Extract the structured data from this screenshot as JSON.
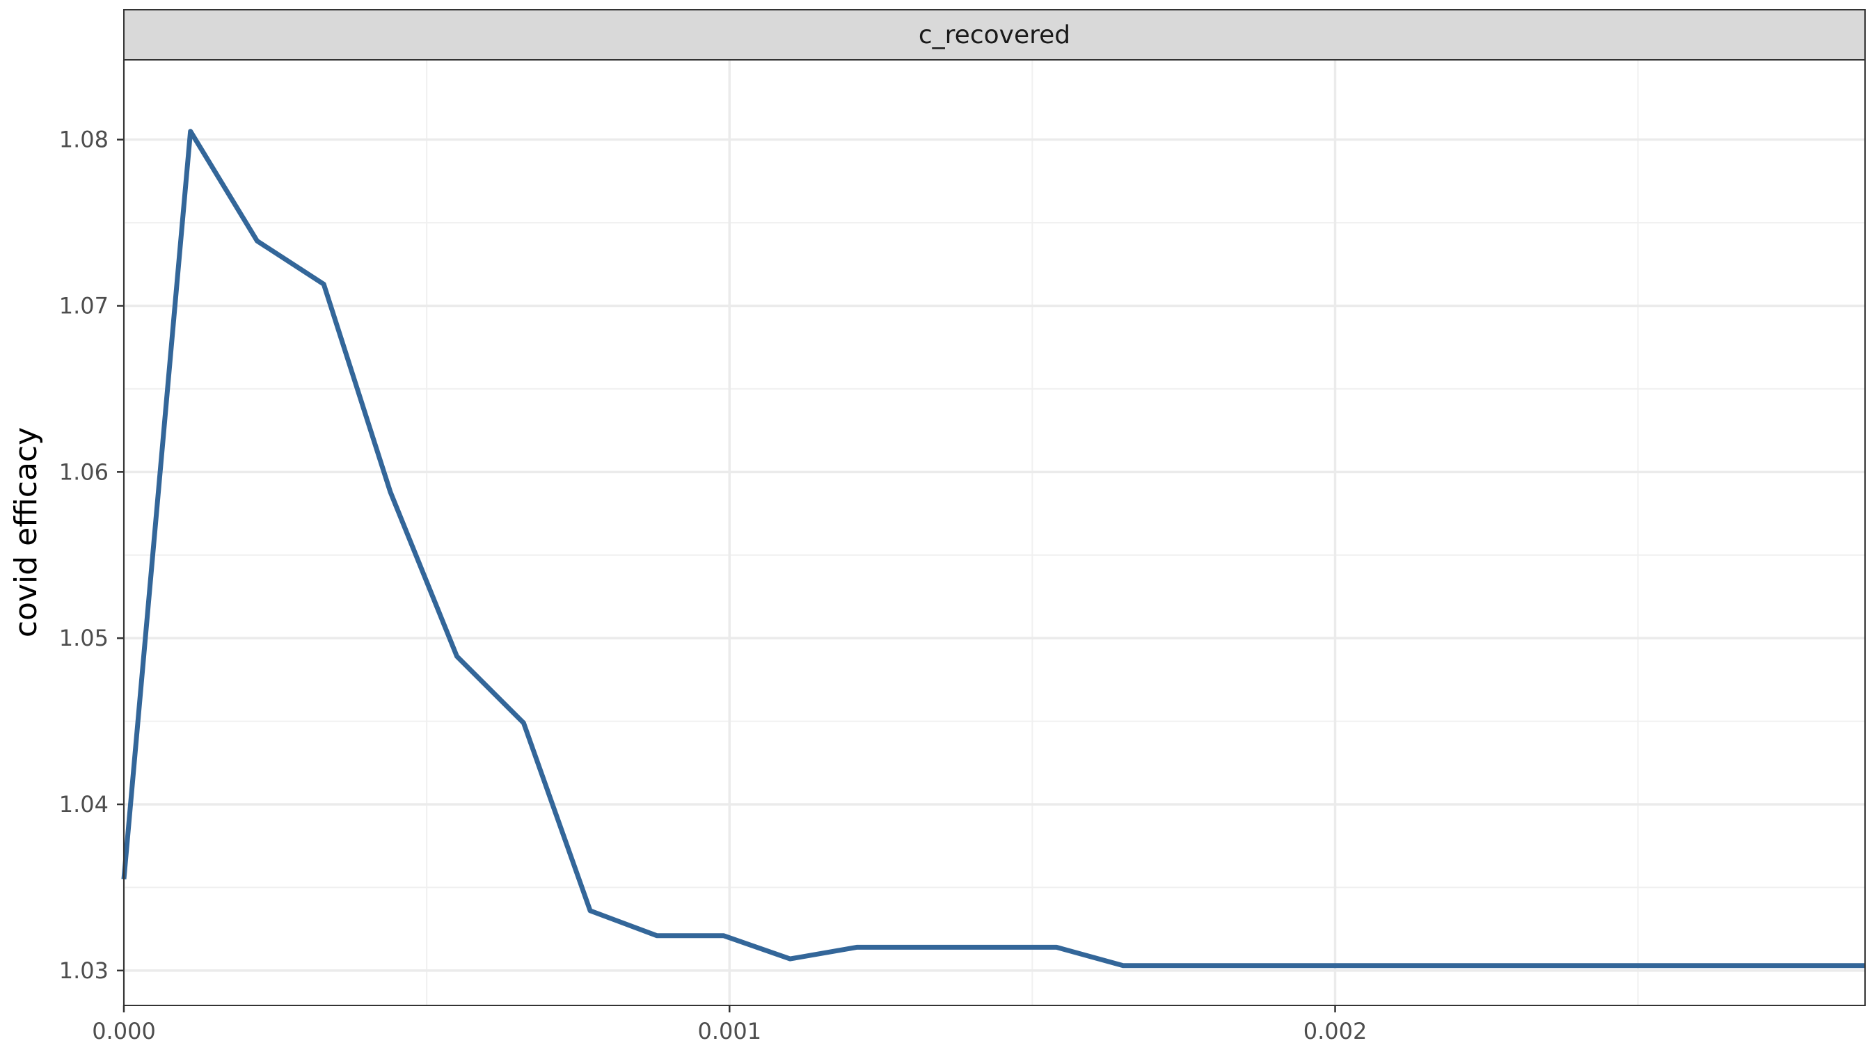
{
  "chart_data": {
    "type": "line",
    "facet_label": "c_recovered",
    "xlabel": "",
    "ylabel": "covid efficacy",
    "xlim": [
      0,
      0.002875
    ],
    "ylim": [
      1.0279,
      1.0848
    ],
    "x_ticks": [
      0,
      0.001,
      0.002
    ],
    "x_tick_labels": [
      "0.000",
      "0.001",
      "0.002"
    ],
    "y_ticks": [
      1.03,
      1.04,
      1.05,
      1.06,
      1.07,
      1.08
    ],
    "y_tick_labels": [
      "1.03",
      "1.04",
      "1.05",
      "1.06",
      "1.07",
      "1.08"
    ],
    "grid": true,
    "series_color": "#336699",
    "series": [
      {
        "name": "",
        "x": [
          0,
          0.00011,
          0.00022,
          0.00033,
          0.00044,
          0.00055,
          0.00066,
          0.00077,
          0.00088,
          0.00099,
          0.0011,
          0.00121,
          0.00132,
          0.00143,
          0.00154,
          0.00165,
          0.00176,
          0.00187,
          0.00198,
          0.00209,
          0.0022,
          0.00231,
          0.00242,
          0.00253,
          0.00264,
          0.00275,
          0.002875
        ],
        "y": [
          1.0355,
          1.0805,
          1.0739,
          1.0713,
          1.0588,
          1.0489,
          1.0449,
          1.0336,
          1.0321,
          1.0321,
          1.0307,
          1.0314,
          1.0314,
          1.0314,
          1.0314,
          1.0303,
          1.0303,
          1.0303,
          1.0303,
          1.0303,
          1.0303,
          1.0303,
          1.0303,
          1.0303,
          1.0303,
          1.0303,
          1.0303
        ]
      }
    ]
  }
}
